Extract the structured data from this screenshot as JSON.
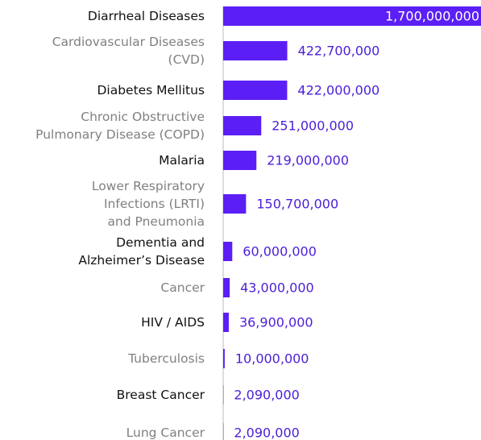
{
  "chart_data": {
    "type": "bar",
    "orientation": "horizontal",
    "color": "#5b1ff5",
    "categories": [
      "Diarrheal Diseases",
      "Cardiovascular Diseases\n(CVD)",
      "Diabetes Mellitus",
      "Chronic Obstructive\nPulmonary Disease (COPD)",
      "Malaria",
      "Lower Respiratory\nInfections (LRTI)\nand Pneumonia",
      "Dementia and\nAlzheimer’s Disease",
      "Cancer",
      "HIV / AIDS",
      "Tuberculosis",
      "Breast Cancer",
      "Lung Cancer"
    ],
    "values": [
      1700000000,
      422700000,
      422000000,
      251000000,
      219000000,
      150700000,
      60000000,
      43000000,
      36900000,
      10000000,
      2090000,
      2090000
    ],
    "value_labels": [
      "1,700,000,000",
      "422,700,000",
      "422,000,000",
      "251,000,000",
      "219,000,000",
      "150,700,000",
      "60,000,000",
      "43,000,000",
      "36,900,000",
      "10,000,000",
      "2,090,000",
      "2,090,000"
    ]
  }
}
